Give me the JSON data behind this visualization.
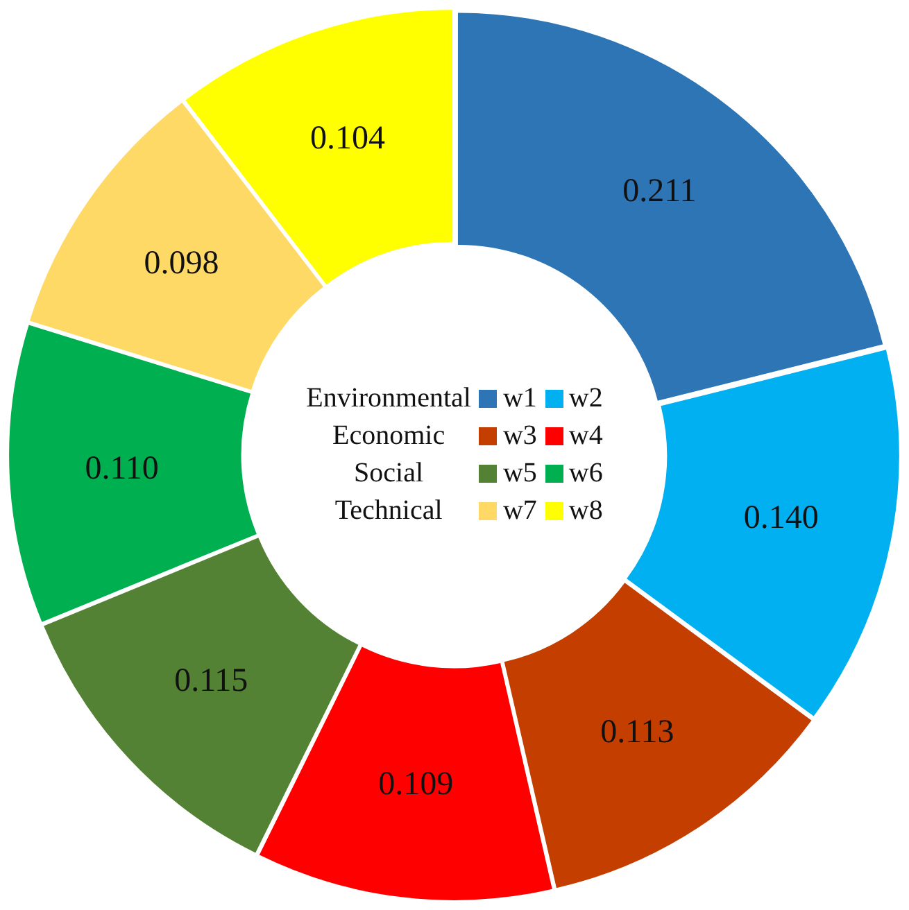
{
  "chart_data": {
    "type": "donut",
    "categories": [
      "w1",
      "w2",
      "w3",
      "w4",
      "w5",
      "w6",
      "w7",
      "w8"
    ],
    "values": [
      0.211,
      0.14,
      0.113,
      0.109,
      0.115,
      0.11,
      0.098,
      0.104
    ],
    "value_labels": [
      "0.211",
      "0.140",
      "0.113",
      "0.109",
      "0.115",
      "0.110",
      "0.098",
      "0.104"
    ],
    "colors": [
      "#2e75b6",
      "#00b0f0",
      "#c43e00",
      "#ff0000",
      "#548235",
      "#00b050",
      "#ffd966",
      "#ffff00"
    ],
    "legend": "center",
    "annotations": [
      "Environmental",
      "Economic",
      "Social",
      "Technical"
    ]
  }
}
